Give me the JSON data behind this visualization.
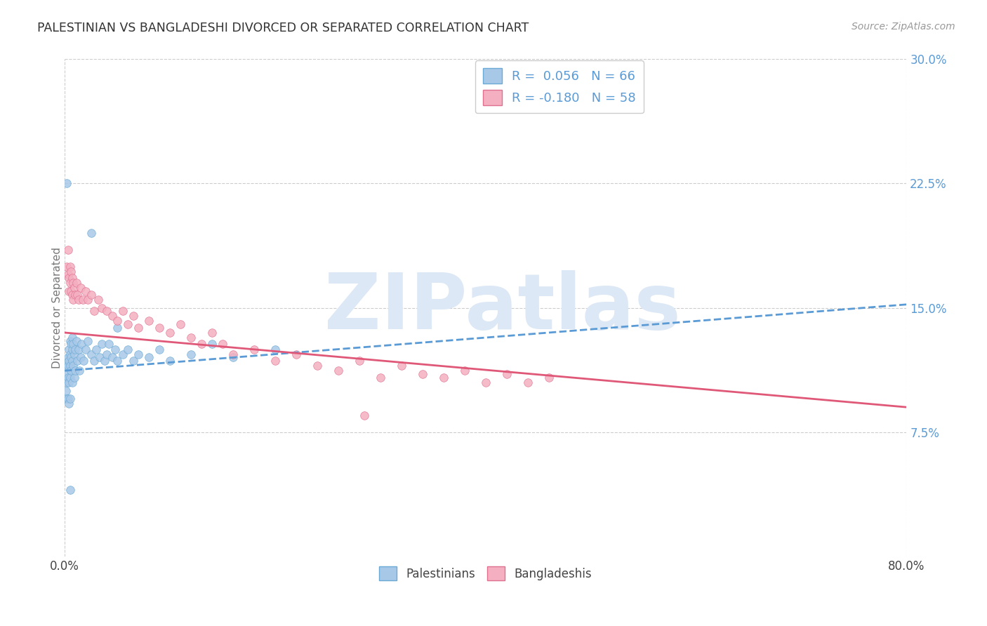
{
  "title": "PALESTINIAN VS BANGLADESHI DIVORCED OR SEPARATED CORRELATION CHART",
  "source": "Source: ZipAtlas.com",
  "ylabel": "Divorced or Separated",
  "xlim": [
    0.0,
    0.8
  ],
  "ylim": [
    0.0,
    0.3
  ],
  "yticks": [
    0.075,
    0.15,
    0.225,
    0.3
  ],
  "yticklabels": [
    "7.5%",
    "15.0%",
    "22.5%",
    "30.0%"
  ],
  "xtick_positions": [
    0.0,
    0.8
  ],
  "xticklabels": [
    "0.0%",
    "80.0%"
  ],
  "legend_r1": "R =  0.056   N = 66",
  "legend_r2": "R = -0.180   N = 58",
  "legend_bottom": [
    "Palestinians",
    "Bangladeshis"
  ],
  "palestinian_color": "#a8c8e8",
  "bangladeshi_color": "#f4afc0",
  "pal_edge_color": "#6aaad4",
  "ban_edge_color": "#e07090",
  "trendline_pal_color": "#5b9bd5",
  "trendline_ban_color": "#e05878",
  "watermark": "ZIPatlas",
  "watermark_color": "#dce8f5",
  "background_color": "#ffffff",
  "grid_color": "#cccccc",
  "right_tick_color": "#5b9bd5",
  "title_color": "#333333",
  "source_color": "#999999",
  "legend_text_color": "#5b9bd5",
  "palestinian_x": [
    0.001,
    0.001,
    0.002,
    0.002,
    0.002,
    0.003,
    0.003,
    0.003,
    0.003,
    0.004,
    0.004,
    0.004,
    0.004,
    0.005,
    0.005,
    0.005,
    0.005,
    0.005,
    0.006,
    0.006,
    0.006,
    0.007,
    0.007,
    0.007,
    0.007,
    0.008,
    0.008,
    0.009,
    0.009,
    0.01,
    0.01,
    0.011,
    0.012,
    0.013,
    0.014,
    0.015,
    0.016,
    0.018,
    0.02,
    0.022,
    0.025,
    0.028,
    0.03,
    0.033,
    0.035,
    0.038,
    0.04,
    0.042,
    0.045,
    0.048,
    0.05,
    0.055,
    0.06,
    0.065,
    0.07,
    0.08,
    0.09,
    0.1,
    0.12,
    0.14,
    0.16,
    0.2,
    0.025,
    0.05,
    0.002,
    0.005
  ],
  "palestinian_y": [
    0.115,
    0.1,
    0.11,
    0.105,
    0.095,
    0.12,
    0.115,
    0.108,
    0.095,
    0.125,
    0.118,
    0.105,
    0.092,
    0.13,
    0.122,
    0.115,
    0.108,
    0.095,
    0.128,
    0.12,
    0.112,
    0.132,
    0.125,
    0.118,
    0.105,
    0.128,
    0.115,
    0.122,
    0.108,
    0.125,
    0.112,
    0.13,
    0.118,
    0.125,
    0.112,
    0.12,
    0.128,
    0.118,
    0.125,
    0.13,
    0.122,
    0.118,
    0.125,
    0.12,
    0.128,
    0.118,
    0.122,
    0.128,
    0.12,
    0.125,
    0.118,
    0.122,
    0.125,
    0.118,
    0.122,
    0.12,
    0.125,
    0.118,
    0.122,
    0.128,
    0.12,
    0.125,
    0.195,
    0.138,
    0.225,
    0.04
  ],
  "bangladeshi_x": [
    0.002,
    0.003,
    0.003,
    0.004,
    0.004,
    0.005,
    0.005,
    0.006,
    0.006,
    0.007,
    0.007,
    0.008,
    0.008,
    0.009,
    0.01,
    0.011,
    0.012,
    0.013,
    0.015,
    0.017,
    0.02,
    0.022,
    0.025,
    0.028,
    0.032,
    0.035,
    0.04,
    0.045,
    0.05,
    0.055,
    0.06,
    0.065,
    0.07,
    0.08,
    0.09,
    0.1,
    0.11,
    0.12,
    0.13,
    0.14,
    0.15,
    0.16,
    0.18,
    0.2,
    0.22,
    0.24,
    0.26,
    0.28,
    0.3,
    0.32,
    0.34,
    0.36,
    0.38,
    0.4,
    0.42,
    0.44,
    0.46,
    0.285
  ],
  "bangladeshi_y": [
    0.175,
    0.185,
    0.17,
    0.168,
    0.16,
    0.175,
    0.165,
    0.172,
    0.16,
    0.168,
    0.158,
    0.165,
    0.155,
    0.162,
    0.158,
    0.165,
    0.158,
    0.155,
    0.162,
    0.155,
    0.16,
    0.155,
    0.158,
    0.148,
    0.155,
    0.15,
    0.148,
    0.145,
    0.142,
    0.148,
    0.14,
    0.145,
    0.138,
    0.142,
    0.138,
    0.135,
    0.14,
    0.132,
    0.128,
    0.135,
    0.128,
    0.122,
    0.125,
    0.118,
    0.122,
    0.115,
    0.112,
    0.118,
    0.108,
    0.115,
    0.11,
    0.108,
    0.112,
    0.105,
    0.11,
    0.105,
    0.108,
    0.085
  ]
}
